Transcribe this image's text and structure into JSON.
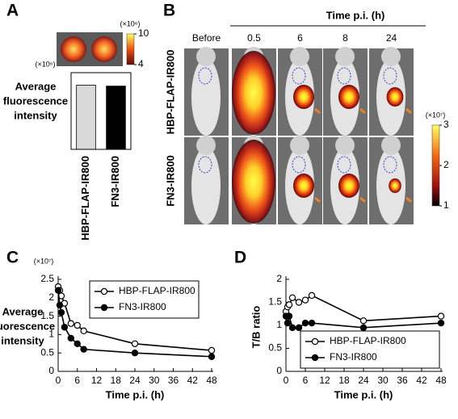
{
  "chart_data": [
    {
      "type": "bar",
      "label": "A",
      "colorbar": {
        "label": "(×10⁶)",
        "ticks": [
          10,
          4
        ],
        "lim": [
          4,
          10
        ]
      },
      "scale_label": "(×10⁶)",
      "ylabel": [
        "Average",
        "fluorescence",
        "intensity"
      ],
      "categories": [
        "HBP-FLAP-IR800",
        "FN3-IR800"
      ],
      "values": [
        6.7,
        6.6
      ],
      "colors": [
        "#d9d9d9",
        "#000000"
      ],
      "ylim": [
        0,
        8
      ]
    },
    {
      "type": "image",
      "label": "B",
      "title": "Time p.i. (h)",
      "columns": [
        "Before",
        "0.5",
        "6",
        "8",
        "24"
      ],
      "rows": [
        "HBP-FLAP-IR800",
        "FN3-IR800"
      ],
      "colorbar": {
        "label": "(×10⁷)",
        "ticks": [
          3,
          2,
          1
        ],
        "lim": [
          1,
          3
        ]
      }
    },
    {
      "type": "line",
      "label": "C",
      "scale_label": "(×10⁷)",
      "ylabel": [
        "Average",
        "fluorescence",
        "intensity"
      ],
      "xlabel": "Time p.i. (h)",
      "x": [
        0,
        0.5,
        1,
        2,
        4,
        6,
        8,
        24,
        48
      ],
      "series": [
        {
          "name": "HBP-FLAP-IR800",
          "color": "#000000",
          "marker_fill": "#ffffff",
          "values": [
            2.3,
            2.2,
            2.05,
            1.85,
            1.3,
            1.25,
            1.1,
            0.75,
            0.57
          ]
        },
        {
          "name": "FN3-IR800",
          "color": "#000000",
          "marker_fill": "#000000",
          "values": [
            2.2,
            1.8,
            1.6,
            1.2,
            0.9,
            0.75,
            0.6,
            0.5,
            0.4
          ]
        }
      ],
      "xlim": [
        0,
        48
      ],
      "xticks": [
        0,
        6,
        12,
        18,
        24,
        30,
        36,
        42,
        48
      ],
      "ylim": [
        0,
        2.5
      ],
      "yticks": [
        0,
        0.5,
        1,
        1.5,
        2,
        2.5
      ],
      "legend": "upper right"
    },
    {
      "type": "line",
      "label": "D",
      "ylabel": "T/B ratio",
      "xlabel": "Time p.i. (h)",
      "x": [
        0,
        0.5,
        1,
        2,
        4,
        6,
        8,
        24,
        48
      ],
      "series": [
        {
          "name": "HBP-FLAP-IR800",
          "color": "#000000",
          "marker_fill": "#ffffff",
          "values": [
            1.3,
            1.4,
            1.45,
            1.6,
            1.5,
            1.55,
            1.65,
            1.1,
            1.2
          ]
        },
        {
          "name": "FN3-IR800",
          "color": "#000000",
          "marker_fill": "#000000",
          "values": [
            1.2,
            1.05,
            1.2,
            0.95,
            0.95,
            1.05,
            1.05,
            0.95,
            1.05
          ]
        }
      ],
      "xlim": [
        0,
        48
      ],
      "xticks": [
        0,
        6,
        12,
        18,
        24,
        30,
        36,
        42,
        48
      ],
      "ylim": [
        0,
        2
      ],
      "yticks": [
        0,
        0.5,
        1,
        1.5,
        2
      ],
      "legend": "lower right"
    }
  ]
}
